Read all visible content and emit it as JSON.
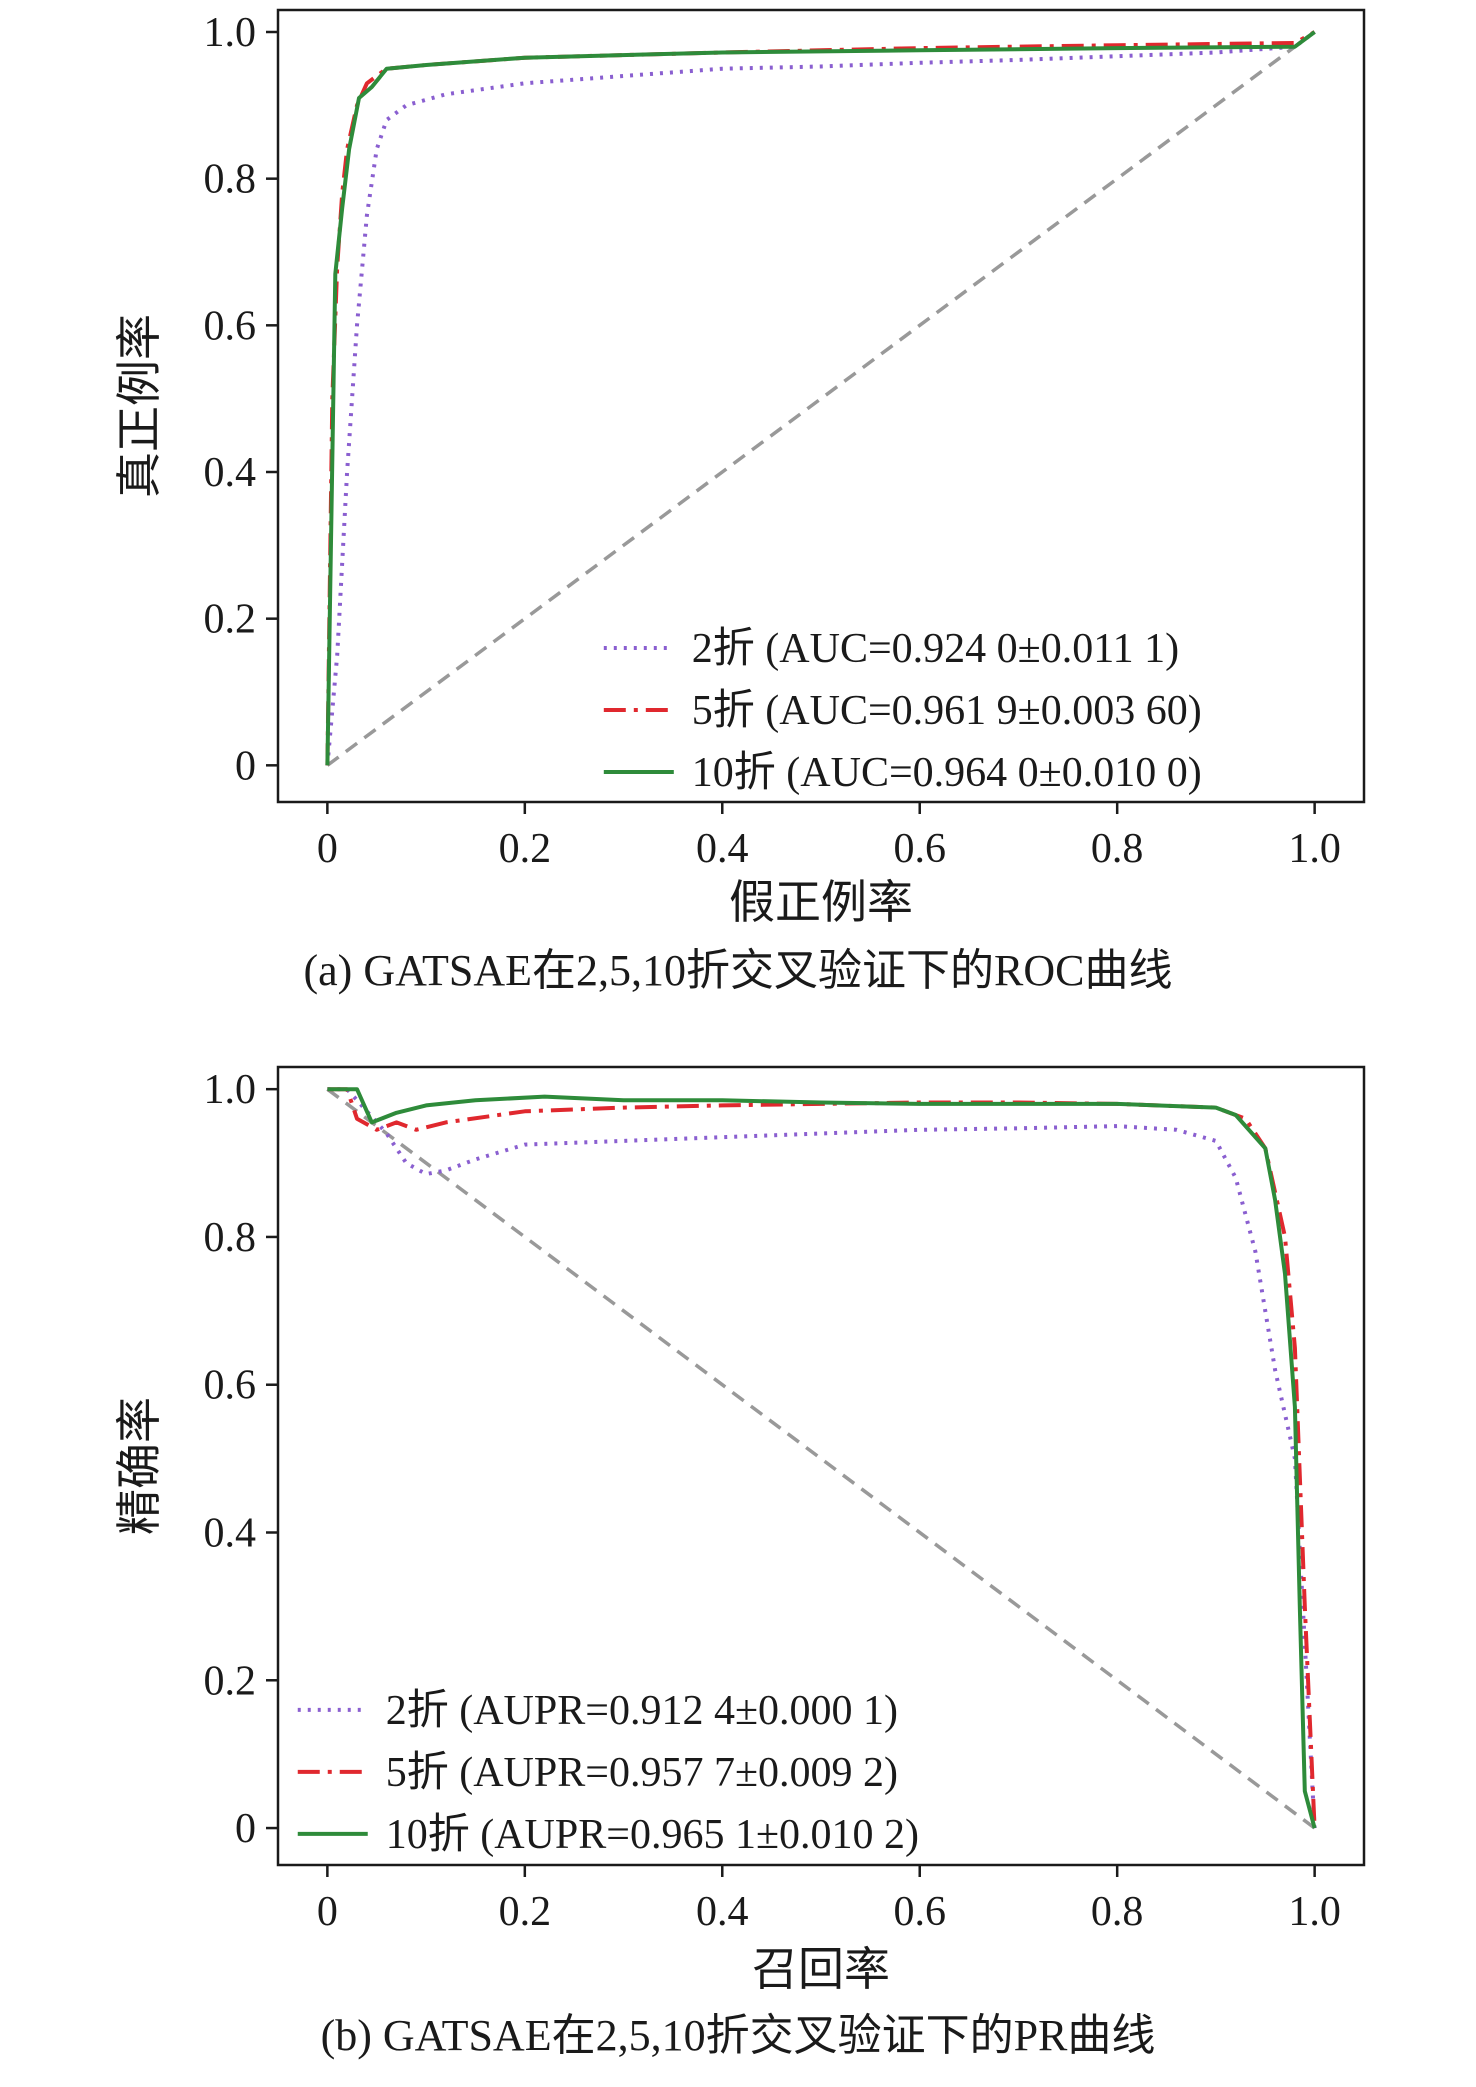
{
  "chart_data": [
    {
      "type": "line",
      "caption": "(a) GATSAE在2,5,10折交叉验证下的ROC曲线",
      "xlabel": "假正例率",
      "ylabel": "真正例率",
      "xlim": [
        -0.05,
        1.05
      ],
      "ylim": [
        -0.05,
        1.03
      ],
      "xticks": [
        0,
        0.2,
        0.4,
        0.6,
        0.8,
        1.0
      ],
      "xtick_labels": [
        "0",
        "0.2",
        "0.4",
        "0.6",
        "0.8",
        "1.0"
      ],
      "yticks": [
        0,
        0.2,
        0.4,
        0.6,
        0.8,
        1.0
      ],
      "ytick_labels": [
        "0",
        "0.2",
        "0.4",
        "0.6",
        "0.8",
        "1.0"
      ],
      "grid": false,
      "legend_position": "bottom-right",
      "reference_line": {
        "points": [
          [
            0,
            0
          ],
          [
            1,
            1
          ]
        ],
        "color": "#999999",
        "style": "dashed"
      },
      "series": [
        {
          "name": "2折 (AUC=0.924 0±0.011 1)",
          "color": "#8a5fd0",
          "style": "dotted",
          "points": [
            [
              0,
              0
            ],
            [
              0.01,
              0.15
            ],
            [
              0.02,
              0.4
            ],
            [
              0.03,
              0.6
            ],
            [
              0.04,
              0.75
            ],
            [
              0.05,
              0.84
            ],
            [
              0.06,
              0.88
            ],
            [
              0.08,
              0.9
            ],
            [
              0.12,
              0.915
            ],
            [
              0.2,
              0.93
            ],
            [
              0.3,
              0.94
            ],
            [
              0.4,
              0.95
            ],
            [
              0.5,
              0.953
            ],
            [
              0.6,
              0.958
            ],
            [
              0.7,
              0.962
            ],
            [
              0.8,
              0.967
            ],
            [
              0.9,
              0.972
            ],
            [
              0.98,
              0.98
            ],
            [
              1.0,
              1.0
            ]
          ]
        },
        {
          "name": "5折 (AUC=0.961 9±0.003 60)",
          "color": "#e0282e",
          "style": "dashdot",
          "points": [
            [
              0,
              0
            ],
            [
              0.005,
              0.5
            ],
            [
              0.01,
              0.68
            ],
            [
              0.015,
              0.78
            ],
            [
              0.02,
              0.84
            ],
            [
              0.03,
              0.9
            ],
            [
              0.04,
              0.93
            ],
            [
              0.06,
              0.95
            ],
            [
              0.1,
              0.955
            ],
            [
              0.2,
              0.965
            ],
            [
              0.4,
              0.972
            ],
            [
              0.6,
              0.978
            ],
            [
              0.8,
              0.982
            ],
            [
              0.98,
              0.985
            ],
            [
              1.0,
              1.0
            ]
          ]
        },
        {
          "name": "10折 (AUC=0.964 0±0.010 0)",
          "color": "#2e8b3a",
          "style": "solid",
          "points": [
            [
              0,
              0
            ],
            [
              0.008,
              0.67
            ],
            [
              0.015,
              0.76
            ],
            [
              0.022,
              0.84
            ],
            [
              0.032,
              0.91
            ],
            [
              0.045,
              0.925
            ],
            [
              0.06,
              0.95
            ],
            [
              0.1,
              0.955
            ],
            [
              0.2,
              0.965
            ],
            [
              0.4,
              0.972
            ],
            [
              0.6,
              0.975
            ],
            [
              0.8,
              0.978
            ],
            [
              0.98,
              0.98
            ],
            [
              1.0,
              1.0
            ]
          ]
        }
      ]
    },
    {
      "type": "line",
      "caption": "(b) GATSAE在2,5,10折交叉验证下的PR曲线",
      "xlabel": "召回率",
      "ylabel": "精确率",
      "xlim": [
        -0.05,
        1.05
      ],
      "ylim": [
        -0.05,
        1.03
      ],
      "xticks": [
        0,
        0.2,
        0.4,
        0.6,
        0.8,
        1.0
      ],
      "xtick_labels": [
        "0",
        "0.2",
        "0.4",
        "0.6",
        "0.8",
        "1.0"
      ],
      "yticks": [
        0,
        0.2,
        0.4,
        0.6,
        0.8,
        1.0
      ],
      "ytick_labels": [
        "0",
        "0.2",
        "0.4",
        "0.6",
        "0.8",
        "1.0"
      ],
      "grid": false,
      "legend_position": "bottom-left",
      "reference_line": {
        "points": [
          [
            0,
            1
          ],
          [
            1,
            0
          ]
        ],
        "color": "#999999",
        "style": "dashed"
      },
      "series": [
        {
          "name": "2折 (AUPR=0.912 4±0.000 1)",
          "color": "#8a5fd0",
          "style": "dotted",
          "points": [
            [
              0,
              1.0
            ],
            [
              0.02,
              1.0
            ],
            [
              0.04,
              0.97
            ],
            [
              0.06,
              0.94
            ],
            [
              0.08,
              0.9
            ],
            [
              0.1,
              0.885
            ],
            [
              0.12,
              0.89
            ],
            [
              0.15,
              0.905
            ],
            [
              0.2,
              0.925
            ],
            [
              0.3,
              0.93
            ],
            [
              0.4,
              0.935
            ],
            [
              0.5,
              0.94
            ],
            [
              0.6,
              0.945
            ],
            [
              0.7,
              0.947
            ],
            [
              0.8,
              0.95
            ],
            [
              0.86,
              0.945
            ],
            [
              0.9,
              0.93
            ],
            [
              0.92,
              0.88
            ],
            [
              0.94,
              0.78
            ],
            [
              0.96,
              0.62
            ],
            [
              0.98,
              0.5
            ],
            [
              0.99,
              0.25
            ],
            [
              1.0,
              0.0
            ]
          ]
        },
        {
          "name": "5折 (AUPR=0.957 7±0.009 2)",
          "color": "#e0282e",
          "style": "dashdot",
          "points": [
            [
              0,
              1.0
            ],
            [
              0.02,
              1.0
            ],
            [
              0.03,
              0.96
            ],
            [
              0.05,
              0.945
            ],
            [
              0.07,
              0.955
            ],
            [
              0.09,
              0.945
            ],
            [
              0.12,
              0.955
            ],
            [
              0.2,
              0.97
            ],
            [
              0.3,
              0.975
            ],
            [
              0.4,
              0.978
            ],
            [
              0.5,
              0.98
            ],
            [
              0.6,
              0.982
            ],
            [
              0.7,
              0.982
            ],
            [
              0.8,
              0.98
            ],
            [
              0.9,
              0.975
            ],
            [
              0.93,
              0.96
            ],
            [
              0.95,
              0.92
            ],
            [
              0.97,
              0.8
            ],
            [
              0.98,
              0.65
            ],
            [
              0.99,
              0.3
            ],
            [
              1.0,
              0.0
            ]
          ]
        },
        {
          "name": "10折 (AUPR=0.965 1±0.010 2)",
          "color": "#2e8b3a",
          "style": "solid",
          "points": [
            [
              0,
              1.0
            ],
            [
              0.03,
              1.0
            ],
            [
              0.045,
              0.955
            ],
            [
              0.07,
              0.968
            ],
            [
              0.1,
              0.978
            ],
            [
              0.15,
              0.985
            ],
            [
              0.22,
              0.99
            ],
            [
              0.3,
              0.985
            ],
            [
              0.4,
              0.985
            ],
            [
              0.5,
              0.982
            ],
            [
              0.6,
              0.98
            ],
            [
              0.7,
              0.98
            ],
            [
              0.8,
              0.98
            ],
            [
              0.9,
              0.975
            ],
            [
              0.92,
              0.965
            ],
            [
              0.95,
              0.92
            ],
            [
              0.96,
              0.85
            ],
            [
              0.97,
              0.75
            ],
            [
              0.98,
              0.57
            ],
            [
              0.985,
              0.3
            ],
            [
              0.99,
              0.05
            ],
            [
              1.0,
              0.0
            ]
          ]
        }
      ]
    }
  ]
}
